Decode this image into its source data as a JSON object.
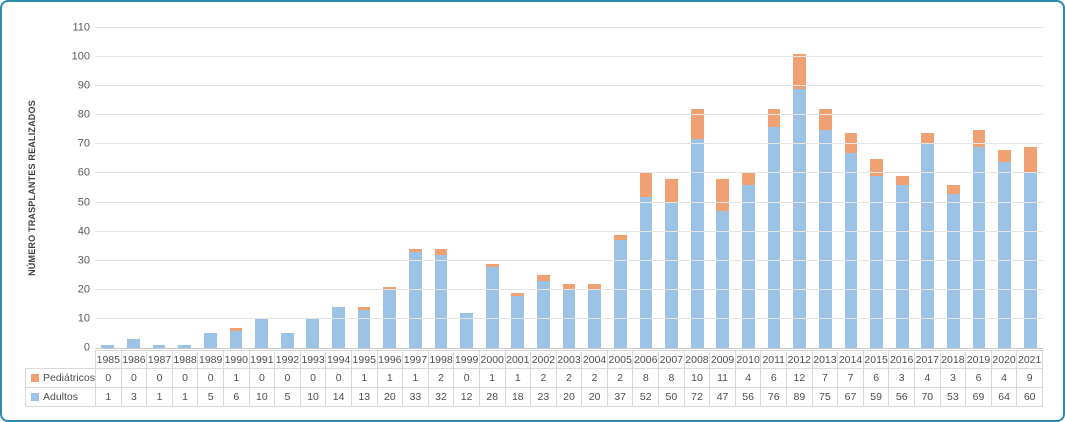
{
  "frame": {
    "border_color": "#2E8BB0"
  },
  "colors": {
    "pediatricos": "#F0A173",
    "adultos": "#9CC3E5",
    "gridline": "#E4E4E4",
    "table_border": "#D8D8D8",
    "text": "#595959"
  },
  "chart_data": {
    "type": "bar",
    "stacked": true,
    "title": "",
    "xlabel": "",
    "ylabel": "NÚMERO TRASPLANTES REALIZADOS",
    "ylim": [
      0,
      110
    ],
    "ytick_interval": 10,
    "grid": true,
    "legend_position": "data-table-left",
    "categories": [
      "1985",
      "1986",
      "1987",
      "1988",
      "1989",
      "1990",
      "1991",
      "1992",
      "1993",
      "1994",
      "1995",
      "1996",
      "1997",
      "1998",
      "1999",
      "2000",
      "2001",
      "2002",
      "2003",
      "2004",
      "2005",
      "2006",
      "2007",
      "2008",
      "2009",
      "2010",
      "2011",
      "2012",
      "2013",
      "2014",
      "2015",
      "2016",
      "2017",
      "2018",
      "2019",
      "2020",
      "2021"
    ],
    "series": [
      {
        "name": "Pediátricos",
        "color": "#F0A173",
        "values": [
          0,
          0,
          0,
          0,
          0,
          1,
          0,
          0,
          0,
          0,
          1,
          1,
          1,
          2,
          0,
          1,
          1,
          2,
          2,
          2,
          2,
          8,
          8,
          10,
          11,
          4,
          6,
          12,
          7,
          7,
          6,
          3,
          4,
          3,
          6,
          4,
          9
        ]
      },
      {
        "name": "Adultos",
        "color": "#9CC3E5",
        "values": [
          1,
          3,
          1,
          1,
          5,
          6,
          10,
          5,
          10,
          14,
          13,
          20,
          33,
          32,
          12,
          28,
          18,
          23,
          20,
          20,
          37,
          52,
          50,
          72,
          47,
          56,
          76,
          89,
          75,
          67,
          59,
          56,
          70,
          53,
          69,
          64,
          60
        ]
      }
    ]
  }
}
